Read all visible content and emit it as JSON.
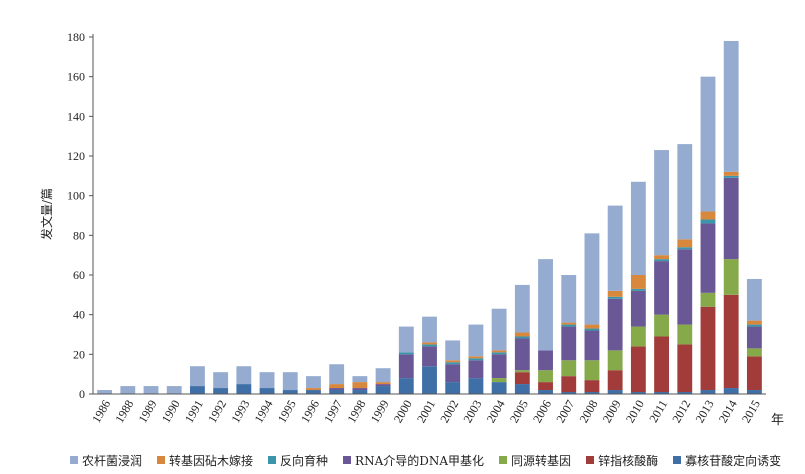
{
  "chart_data": {
    "type": "bar",
    "stacked": true,
    "ylabel": "发文量/篇",
    "xlabel": "年",
    "ylim": [
      0,
      180
    ],
    "yticks": [
      0,
      20,
      40,
      60,
      80,
      100,
      120,
      140,
      160,
      180
    ],
    "categories": [
      "1986",
      "1988",
      "1989",
      "1990",
      "1991",
      "1992",
      "1993",
      "1994",
      "1995",
      "1996",
      "1997",
      "1998",
      "1999",
      "2000",
      "2001",
      "2002",
      "2003",
      "2004",
      "2005",
      "2006",
      "2007",
      "2008",
      "2009",
      "2010",
      "2011",
      "2012",
      "2013",
      "2014",
      "2015"
    ],
    "series": [
      {
        "name": "寡核苷酸定向诱变",
        "color": "#3e6fa6",
        "values": [
          0,
          0,
          0,
          0,
          4,
          3,
          5,
          3,
          2,
          2,
          2,
          2,
          4,
          8,
          14,
          6,
          8,
          6,
          5,
          2,
          1,
          1,
          2,
          1,
          1,
          1,
          2,
          3,
          2
        ]
      },
      {
        "name": "锌指核酸酶",
        "color": "#a23c3a",
        "values": [
          0,
          0,
          0,
          0,
          0,
          0,
          0,
          0,
          0,
          0,
          0,
          0,
          0,
          0,
          0,
          0,
          0,
          0,
          6,
          4,
          8,
          6,
          10,
          23,
          28,
          24,
          42,
          47,
          17
        ]
      },
      {
        "name": "同源转基因",
        "color": "#86aa4a",
        "values": [
          0,
          0,
          0,
          0,
          0,
          0,
          0,
          0,
          0,
          0,
          0,
          0,
          0,
          0,
          0,
          0,
          0,
          2,
          1,
          6,
          8,
          10,
          10,
          10,
          11,
          10,
          7,
          18,
          4
        ]
      },
      {
        "name": "RNA介导的DNA甲基化",
        "color": "#6a5896",
        "values": [
          0,
          0,
          0,
          0,
          0,
          0,
          0,
          0,
          0,
          0,
          1,
          1,
          1,
          12,
          10,
          9,
          9,
          12,
          16,
          10,
          17,
          15,
          26,
          18,
          27,
          38,
          35,
          41,
          11
        ]
      },
      {
        "name": "反向育种",
        "color": "#3b95ab",
        "values": [
          0,
          0,
          0,
          0,
          0,
          0,
          0,
          0,
          0,
          0,
          0,
          0,
          0,
          1,
          1,
          1,
          1,
          1,
          1,
          0,
          1,
          1,
          1,
          1,
          1,
          1,
          2,
          1,
          1
        ]
      },
      {
        "name": "转基因砧木嫁接",
        "color": "#d8883d",
        "values": [
          0,
          0,
          0,
          0,
          0,
          0,
          0,
          0,
          0,
          1,
          2,
          3,
          1,
          0,
          1,
          1,
          1,
          1,
          2,
          0,
          1,
          2,
          3,
          7,
          2,
          4,
          4,
          2,
          2
        ]
      },
      {
        "name": "农杆菌浸润",
        "color": "#95abcf",
        "values": [
          2,
          4,
          4,
          4,
          10,
          8,
          9,
          8,
          9,
          6,
          10,
          3,
          7,
          13,
          13,
          10,
          16,
          21,
          24,
          46,
          24,
          46,
          43,
          47,
          53,
          48,
          68,
          66,
          21
        ]
      }
    ],
    "legend_order": [
      "农杆菌浸润",
      "转基因砧木嫁接",
      "反向育种",
      "RNA介导的DNA甲基化",
      "同源转基因",
      "锌指核酸酶",
      "寡核苷酸定向诱变"
    ]
  }
}
